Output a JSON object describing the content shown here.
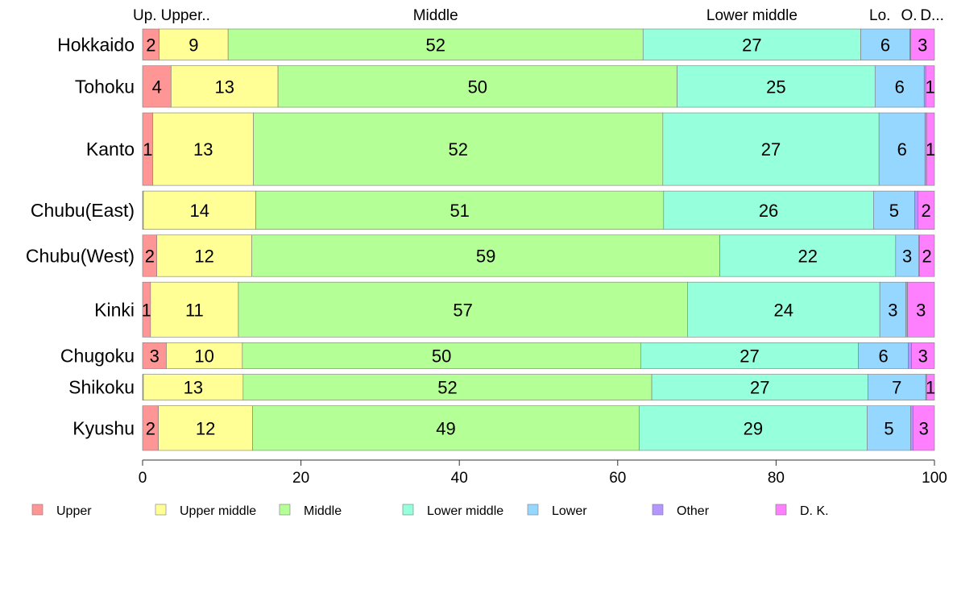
{
  "chart_data": {
    "type": "bar",
    "orientation": "horizontal",
    "stacked": true,
    "xlim": [
      0,
      100
    ],
    "xticks": [
      0,
      20,
      40,
      60,
      80,
      100
    ],
    "legend_position": "bottom",
    "categories": [
      "Hokkaido",
      "Tohoku",
      "Kanto",
      "Chubu(East)",
      "Chubu(West)",
      "Kinki",
      "Chugoku",
      "Shikoku",
      "Kyushu"
    ],
    "bar_weights": [
      3,
      4,
      7,
      3.7,
      4,
      5.3,
      2.5,
      2.5,
      4.3
    ],
    "series": [
      {
        "name": "Upper",
        "short": "Up.",
        "color": "#ff9696",
        "values": [
          2.1,
          3.6,
          1.3,
          0.1,
          1.8,
          1.0,
          3.0,
          0.1,
          2.0
        ],
        "labels": [
          "2",
          "4",
          "1",
          "",
          "2",
          "1",
          "3",
          "",
          "2"
        ]
      },
      {
        "name": "Upper middle",
        "short": "Upper..",
        "color": "#ffff96",
        "values": [
          8.7,
          13.5,
          12.7,
          14.2,
          12.0,
          11.1,
          9.6,
          12.6,
          11.9
        ],
        "labels": [
          "9",
          "13",
          "13",
          "14",
          "12",
          "11",
          "10",
          "13",
          "12"
        ]
      },
      {
        "name": "Middle",
        "short": "Middle",
        "color": "#b4ff96",
        "values": [
          52.4,
          50.4,
          51.7,
          51.5,
          59.1,
          56.7,
          50.3,
          51.6,
          48.8
        ],
        "labels": [
          "52",
          "50",
          "52",
          "51",
          "59",
          "57",
          "50",
          "52",
          "49"
        ]
      },
      {
        "name": "Lower middle",
        "short": "Lower middle",
        "color": "#96ffdc",
        "values": [
          27.5,
          25.0,
          27.3,
          26.5,
          22.2,
          24.3,
          27.5,
          27.3,
          28.8
        ],
        "labels": [
          "27",
          "25",
          "27",
          "26",
          "22",
          "24",
          "27",
          "27",
          "29"
        ]
      },
      {
        "name": "Lower",
        "short": "Lo.",
        "color": "#96d7ff",
        "values": [
          6.2,
          6.2,
          5.8,
          5.2,
          2.9,
          3.3,
          6.3,
          7.3,
          5.5
        ],
        "labels": [
          "6",
          "6",
          "6",
          "5",
          "3",
          "3",
          "6",
          "7",
          "5"
        ]
      },
      {
        "name": "Other",
        "short": "O.",
        "color": "#b496ff",
        "values": [
          0.1,
          0.2,
          0.2,
          0.4,
          0.1,
          0.2,
          0.4,
          0.1,
          0.3
        ],
        "labels": [
          "",
          "",
          "",
          "",
          "",
          "",
          "",
          "",
          ""
        ]
      },
      {
        "name": "D. K.",
        "short": "D...",
        "color": "#ff80ff",
        "values": [
          3.0,
          1.1,
          1.0,
          2.1,
          1.9,
          3.4,
          2.9,
          1.0,
          2.7
        ],
        "labels": [
          "3",
          "1",
          "1",
          "2",
          "2",
          "3",
          "3",
          "1",
          "3"
        ]
      }
    ]
  }
}
